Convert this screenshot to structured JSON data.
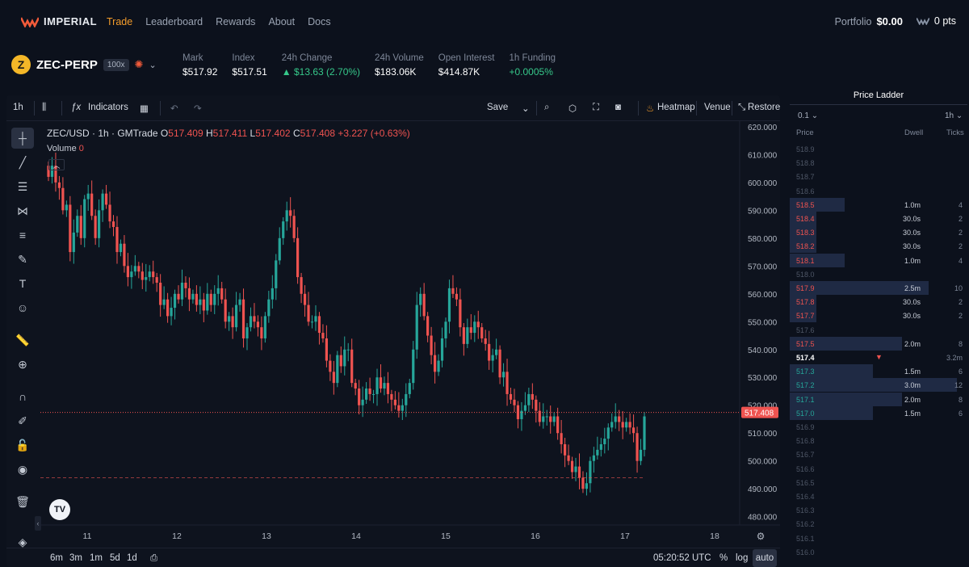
{
  "nav": {
    "brand": "IMPERIAL",
    "links": [
      "Trade",
      "Leaderboard",
      "Rewards",
      "About",
      "Docs"
    ],
    "active": "Trade",
    "portfolio_label": "Portfolio",
    "portfolio_value": "$0.00",
    "points": "0 pts"
  },
  "market": {
    "symbol": "ZEC-PERP",
    "leverage": "100x",
    "stats": [
      {
        "label": "Mark",
        "value": "$517.92",
        "up": false
      },
      {
        "label": "Index",
        "value": "$517.51",
        "up": false
      },
      {
        "label": "24h Change",
        "value": "▲ $13.63 (2.70%)",
        "up": true
      },
      {
        "label": "24h Volume",
        "value": "$183.06K",
        "up": false
      },
      {
        "label": "Open Interest",
        "value": "$414.87K",
        "up": false
      },
      {
        "label": "1h Funding",
        "value": "+0.0005%",
        "up": true
      }
    ]
  },
  "toolbar": {
    "interval": "1h",
    "indicators": "Indicators",
    "save": "Save",
    "heatmap": "Heatmap",
    "venue": "Venue",
    "restore": "Restore"
  },
  "legend": {
    "title": "ZEC/USD · 1h · GMTrade",
    "o_label": "O",
    "o": "517.409",
    "h_label": "H",
    "h": "517.411",
    "l_label": "L",
    "l": "517.402",
    "c_label": "C",
    "c": "517.408",
    "change": "+3.227 (+0.63%)",
    "volume_label": "Volume",
    "volume": "0"
  },
  "bottom": {
    "timeframes": [
      "6m",
      "3m",
      "1m",
      "5d",
      "1d"
    ],
    "clock": "05:20:52 UTC",
    "pct": "%",
    "log": "log",
    "auto": "auto"
  },
  "chart_data": {
    "type": "candlestick",
    "title": "ZEC/USD · 1h · GMTrade",
    "y_ticks": [
      "620.000",
      "610.000",
      "600.000",
      "590.000",
      "580.000",
      "570.000",
      "560.000",
      "550.000",
      "540.000",
      "530.000",
      "520.000",
      "510.000",
      "500.000",
      "490.000",
      "480.000"
    ],
    "ylim": [
      477,
      622
    ],
    "x_ticks": [
      "11",
      "12",
      "13",
      "14",
      "15",
      "16",
      "17",
      "18"
    ],
    "current_price": "517.408",
    "current_price_value": 517.408,
    "dashed_low_value": 494,
    "closes": [
      602,
      606,
      600,
      598,
      590,
      592,
      575,
      582,
      588,
      580,
      594,
      596,
      588,
      580,
      590,
      596,
      592,
      586,
      584,
      575,
      578,
      570,
      566,
      568,
      570,
      568,
      565,
      566,
      568,
      566,
      564,
      556,
      558,
      552,
      555,
      560,
      558,
      564,
      562,
      558,
      560,
      556,
      558,
      554,
      560,
      556,
      560,
      562,
      558,
      550,
      552,
      548,
      556,
      558,
      544,
      548,
      552,
      550,
      548,
      544,
      552,
      558,
      562,
      572,
      580,
      586,
      590,
      588,
      580,
      566,
      560,
      556,
      550,
      550,
      552,
      546,
      544,
      536,
      532,
      528,
      538,
      534,
      540,
      540,
      528,
      526,
      520,
      522,
      526,
      524,
      524,
      530,
      526,
      528,
      524,
      522,
      520,
      518,
      520,
      524,
      528,
      540,
      556,
      560,
      552,
      545,
      538,
      532,
      536,
      544,
      550,
      562,
      560,
      558,
      548,
      542,
      548,
      546,
      550,
      548,
      544,
      542,
      536,
      538,
      540,
      530,
      532,
      524,
      522,
      520,
      515,
      518,
      520,
      524,
      522,
      518,
      514,
      516,
      516,
      514,
      516,
      510,
      506,
      502,
      500,
      496,
      498,
      494,
      490,
      492,
      500,
      502,
      504,
      506,
      508,
      512,
      514,
      516,
      514,
      512,
      514,
      512,
      510,
      500,
      504,
      516
    ]
  },
  "ladder": {
    "title": "Price Ladder",
    "tick_size": "0.1",
    "interval": "1h",
    "headers": [
      "Price",
      "Dwell",
      "Ticks"
    ],
    "current_price": "517.4",
    "current_dwell": "3.2m",
    "rows": [
      {
        "p": "518.9",
        "d": "",
        "t": "",
        "w": 0,
        "c": "none"
      },
      {
        "p": "518.8",
        "d": "",
        "t": "",
        "w": 0,
        "c": "none"
      },
      {
        "p": "518.7",
        "d": "",
        "t": "",
        "w": 0,
        "c": "none"
      },
      {
        "p": "518.6",
        "d": "",
        "t": "",
        "w": 0,
        "c": "none"
      },
      {
        "p": "518.5",
        "d": "1.0m",
        "t": "4",
        "w": 0.31,
        "c": "red"
      },
      {
        "p": "518.4",
        "d": "30.0s",
        "t": "2",
        "w": 0.15,
        "c": "red"
      },
      {
        "p": "518.3",
        "d": "30.0s",
        "t": "2",
        "w": 0.15,
        "c": "red"
      },
      {
        "p": "518.2",
        "d": "30.0s",
        "t": "2",
        "w": 0.15,
        "c": "red"
      },
      {
        "p": "518.1",
        "d": "1.0m",
        "t": "4",
        "w": 0.31,
        "c": "red"
      },
      {
        "p": "518.0",
        "d": "",
        "t": "",
        "w": 0,
        "c": "none"
      },
      {
        "p": "517.9",
        "d": "2.5m",
        "t": "10",
        "w": 0.78,
        "c": "red"
      },
      {
        "p": "517.8",
        "d": "30.0s",
        "t": "2",
        "w": 0.15,
        "c": "red"
      },
      {
        "p": "517.7",
        "d": "30.0s",
        "t": "2",
        "w": 0.15,
        "c": "red"
      },
      {
        "p": "517.6",
        "d": "",
        "t": "",
        "w": 0,
        "c": "none"
      },
      {
        "p": "517.5",
        "d": "2.0m",
        "t": "8",
        "w": 0.63,
        "c": "red"
      },
      {
        "p": "517.4",
        "d": "3.2m",
        "t": "",
        "w": 0,
        "c": "current"
      },
      {
        "p": "517.3",
        "d": "1.5m",
        "t": "6",
        "w": 0.47,
        "c": "green"
      },
      {
        "p": "517.2",
        "d": "3.0m",
        "t": "12",
        "w": 0.94,
        "c": "green"
      },
      {
        "p": "517.1",
        "d": "2.0m",
        "t": "8",
        "w": 0.63,
        "c": "green"
      },
      {
        "p": "517.0",
        "d": "1.5m",
        "t": "6",
        "w": 0.47,
        "c": "green"
      },
      {
        "p": "516.9",
        "d": "",
        "t": "",
        "w": 0,
        "c": "none"
      },
      {
        "p": "516.8",
        "d": "",
        "t": "",
        "w": 0,
        "c": "none"
      },
      {
        "p": "516.7",
        "d": "",
        "t": "",
        "w": 0,
        "c": "none"
      },
      {
        "p": "516.6",
        "d": "",
        "t": "",
        "w": 0,
        "c": "none"
      },
      {
        "p": "516.5",
        "d": "",
        "t": "",
        "w": 0,
        "c": "none"
      },
      {
        "p": "516.4",
        "d": "",
        "t": "",
        "w": 0,
        "c": "none"
      },
      {
        "p": "516.3",
        "d": "",
        "t": "",
        "w": 0,
        "c": "none"
      },
      {
        "p": "516.2",
        "d": "",
        "t": "",
        "w": 0,
        "c": "none"
      },
      {
        "p": "516.1",
        "d": "",
        "t": "",
        "w": 0,
        "c": "none"
      },
      {
        "p": "516.0",
        "d": "",
        "t": "",
        "w": 0,
        "c": "none"
      }
    ]
  },
  "colors": {
    "accent": "#f39c2b",
    "up": "#26a69a",
    "down": "#ef5350",
    "ladder_bar": "#1f2a44",
    "bg": "#0c111c"
  }
}
